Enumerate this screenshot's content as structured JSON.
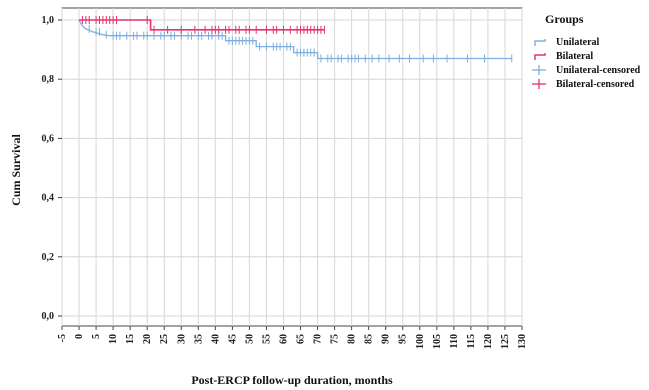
{
  "chart_data": {
    "type": "line",
    "xlabel": "Post-ERCP  follow-up duration, months",
    "ylabel": "Cum Survival",
    "xlim": [
      -5,
      130
    ],
    "ylim": [
      0.0,
      1.0
    ],
    "xticks": [
      -5,
      0,
      5,
      10,
      15,
      20,
      25,
      30,
      35,
      40,
      45,
      50,
      55,
      60,
      65,
      70,
      75,
      80,
      85,
      90,
      95,
      100,
      105,
      110,
      115,
      120,
      125,
      130
    ],
    "yticks": [
      0.0,
      0.2,
      0.4,
      0.6,
      0.8,
      1.0
    ],
    "ytick_labels": [
      "0,0",
      "0,2",
      "0,4",
      "0,6",
      "0,8",
      "1,0"
    ],
    "grid": true,
    "legend": {
      "title": "Groups",
      "position": "top-right",
      "entries": [
        "Unilateral",
        "Bilateral",
        "Unilateral-censored",
        "Bilateral-censored"
      ]
    },
    "colors": {
      "unilateral": "#7eaee0",
      "bilateral": "#e8306c"
    },
    "series": [
      {
        "name": "Unilateral",
        "step_points": [
          [
            0,
            1.0
          ],
          [
            1,
            0.98
          ],
          [
            2,
            0.97
          ],
          [
            4,
            0.96
          ],
          [
            7,
            0.95
          ],
          [
            9,
            0.947
          ],
          [
            43,
            0.947
          ],
          [
            43,
            0.93
          ],
          [
            52,
            0.93
          ],
          [
            52,
            0.91
          ],
          [
            63,
            0.91
          ],
          [
            63,
            0.89
          ],
          [
            70,
            0.89
          ],
          [
            70,
            0.87
          ],
          [
            127,
            0.87
          ]
        ],
        "censored_x": [
          3,
          5,
          6,
          8,
          10,
          11,
          12,
          14,
          16,
          17,
          19,
          20,
          22,
          24,
          25,
          27,
          28,
          30,
          32,
          33,
          35,
          36,
          38,
          39,
          41,
          42,
          44,
          45,
          46,
          47,
          48,
          49,
          50,
          51,
          53,
          55,
          57,
          58,
          59,
          61,
          62,
          64,
          65,
          66,
          67,
          68,
          69,
          71,
          73,
          74,
          76,
          77,
          79,
          80,
          81,
          82,
          84,
          86,
          88,
          91,
          94,
          97,
          101,
          104,
          108,
          114,
          119,
          127
        ]
      },
      {
        "name": "Bilateral",
        "step_points": [
          [
            0,
            1.0
          ],
          [
            21,
            1.0
          ],
          [
            21,
            0.967
          ],
          [
            72,
            0.967
          ]
        ],
        "censored_x": [
          1,
          2,
          3,
          5,
          6,
          7,
          8,
          9,
          10,
          11,
          20,
          22,
          26,
          30,
          34,
          37,
          39,
          40,
          41,
          43,
          44,
          46,
          47,
          49,
          50,
          52,
          55,
          57,
          58,
          60,
          62,
          64,
          65,
          66,
          67,
          68,
          69,
          70,
          71,
          72
        ]
      }
    ]
  }
}
